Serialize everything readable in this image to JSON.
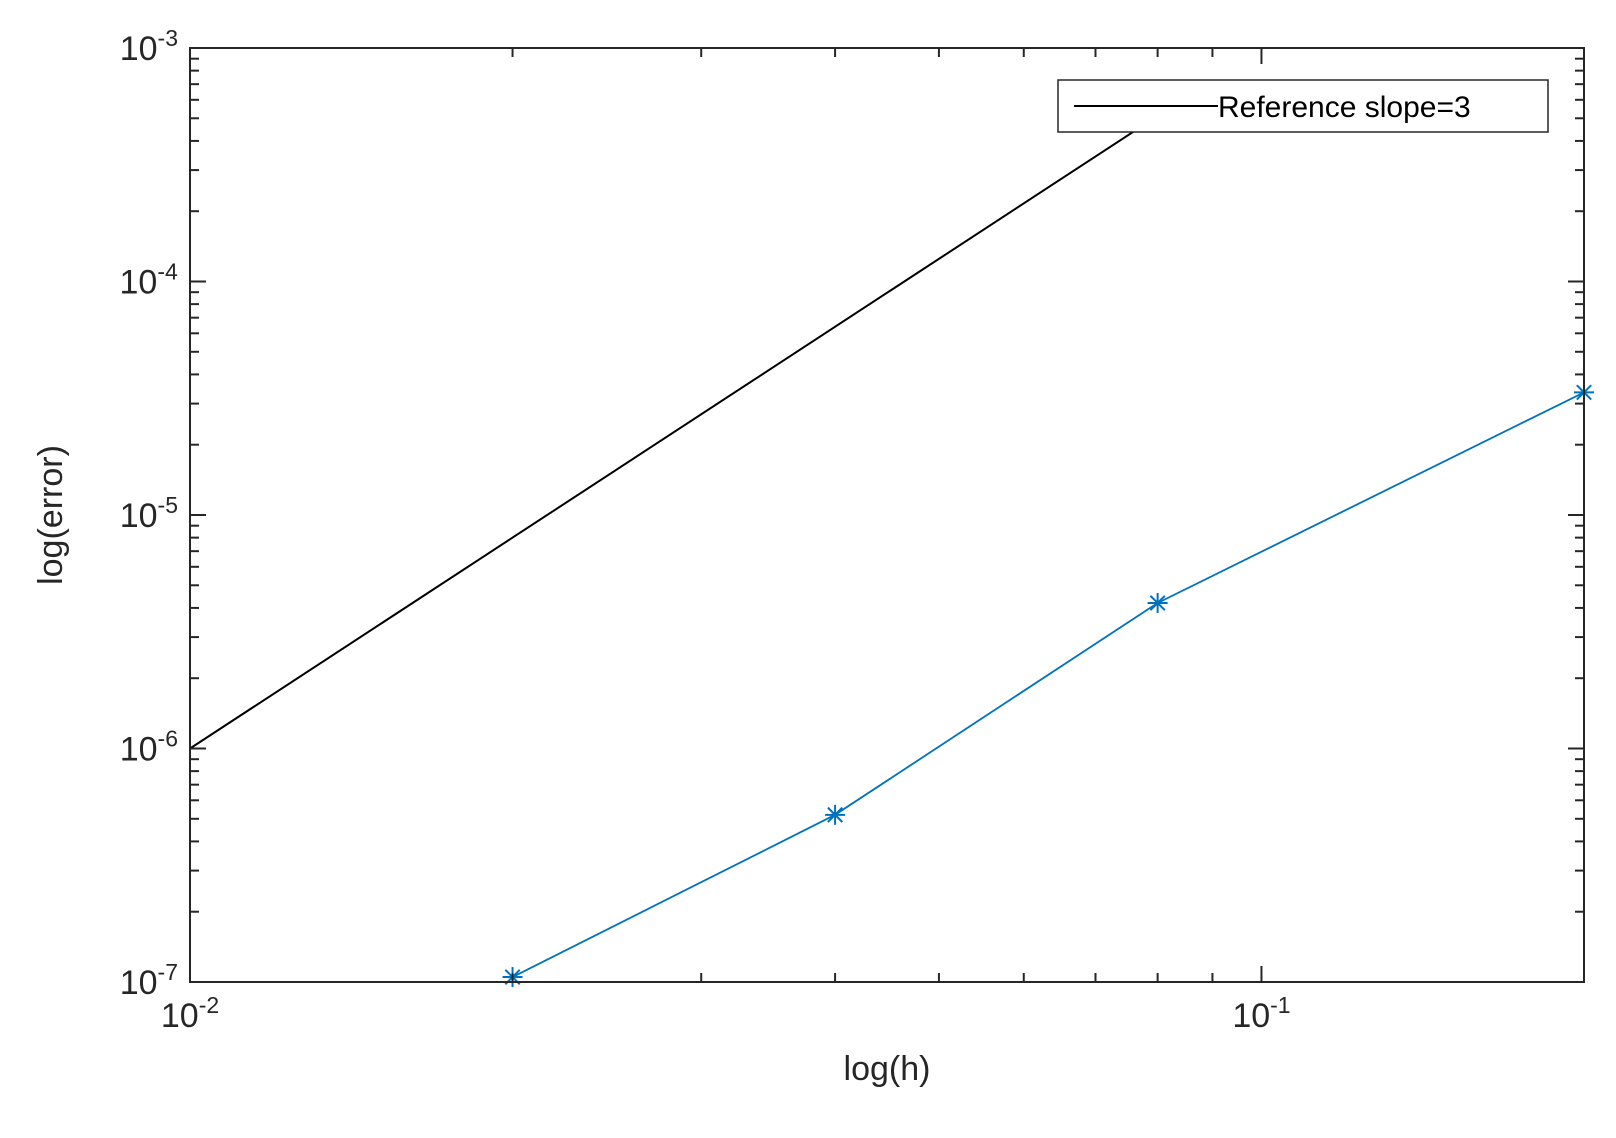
{
  "chart_data": {
    "type": "line",
    "xscale": "log",
    "yscale": "log",
    "xlim": [
      0.01,
      0.2
    ],
    "ylim": [
      1e-07,
      0.001
    ],
    "xlabel": "log(h)",
    "ylabel": "log(error)",
    "xticks": [
      {
        "value": 0.01,
        "base": "10",
        "exp": "-2"
      },
      {
        "value": 0.1,
        "base": "10",
        "exp": "-1"
      }
    ],
    "yticks": [
      {
        "value": 1e-07,
        "base": "10",
        "exp": "-7"
      },
      {
        "value": 1e-06,
        "base": "10",
        "exp": "-6"
      },
      {
        "value": 1e-05,
        "base": "10",
        "exp": "-5"
      },
      {
        "value": 0.0001,
        "base": "10",
        "exp": "-4"
      },
      {
        "value": 0.001,
        "base": "10",
        "exp": "-3"
      }
    ],
    "series": [
      {
        "name": "Reference slope=3",
        "color": "#000000",
        "marker": "none",
        "x": [
          0.01,
          0.07937
        ],
        "y": [
          1e-06,
          0.0005
        ]
      },
      {
        "color": "#0072BD",
        "marker": "asterisk",
        "x": [
          0.02,
          0.04,
          0.08,
          0.2
        ],
        "y": [
          1.05e-07,
          5.2e-07,
          4.2e-06,
          3.35e-05
        ]
      }
    ],
    "legend": {
      "position": "top-right",
      "entries": [
        "Reference slope=3"
      ]
    },
    "grid": false
  }
}
